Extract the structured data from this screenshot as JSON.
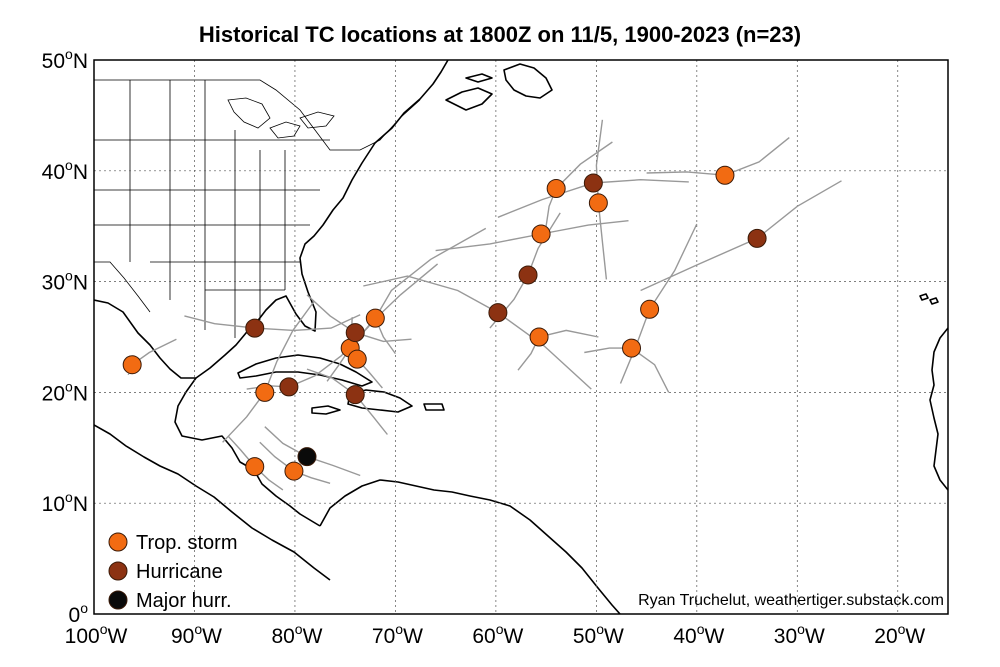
{
  "title": "Historical TC locations at 1800Z on 11/5, 1900-2023 (n=23)",
  "credit": "Ryan Truchelut, weathertiger.substack.com",
  "map": {
    "lon_range": [
      -100,
      -15
    ],
    "lat_range": [
      0,
      50
    ],
    "grid": true,
    "x_ticks": [
      {
        "lon": -100,
        "num": "100",
        "sup": "o",
        "hem": "W"
      },
      {
        "lon": -90,
        "num": "90",
        "sup": "o",
        "hem": "W"
      },
      {
        "lon": -80,
        "num": "80",
        "sup": "o",
        "hem": "W"
      },
      {
        "lon": -70,
        "num": "70",
        "sup": "o",
        "hem": "W"
      },
      {
        "lon": -60,
        "num": "60",
        "sup": "o",
        "hem": "W"
      },
      {
        "lon": -50,
        "num": "50",
        "sup": "o",
        "hem": "W"
      },
      {
        "lon": -40,
        "num": "40",
        "sup": "o",
        "hem": "W"
      },
      {
        "lon": -30,
        "num": "30",
        "sup": "o",
        "hem": "W"
      },
      {
        "lon": -20,
        "num": "20",
        "sup": "o",
        "hem": "W"
      }
    ],
    "y_ticks": [
      {
        "lat": 0,
        "num": "0",
        "sup": "o",
        "hem": ""
      },
      {
        "lat": 10,
        "num": "10",
        "sup": "o",
        "hem": "N"
      },
      {
        "lat": 20,
        "num": "20",
        "sup": "o",
        "hem": "N"
      },
      {
        "lat": 30,
        "num": "30",
        "sup": "o",
        "hem": "N"
      },
      {
        "lat": 40,
        "num": "40",
        "sup": "o",
        "hem": "N"
      },
      {
        "lat": 50,
        "num": "50",
        "sup": "o",
        "hem": "N"
      }
    ]
  },
  "legend": [
    {
      "label": "Trop. storm",
      "category": "ts"
    },
    {
      "label": "Hurricane",
      "category": "hu"
    },
    {
      "label": "Major hurr.",
      "category": "mh"
    }
  ],
  "colors": {
    "ts": "#f26b12",
    "hu": "#8c3212",
    "mh": "#0a0a0a",
    "track": "#999999",
    "coast": "#000000",
    "state": "#000000",
    "grid": "#555555"
  },
  "chart_data": {
    "type": "scatter",
    "title": "Historical TC locations at 1800Z on 11/5, 1900-2023 (n=23)",
    "x_unit": "degrees longitude (W negative)",
    "y_unit": "degrees latitude",
    "xlim": [
      -100,
      -15
    ],
    "ylim": [
      0,
      50
    ],
    "series": [
      {
        "name": "Trop. storm",
        "category": "ts",
        "points": [
          [
            -96.2,
            22.5
          ],
          [
            -83.0,
            20.0
          ],
          [
            -84.0,
            13.3
          ],
          [
            -80.1,
            12.9
          ],
          [
            -74.5,
            24.0
          ],
          [
            -73.8,
            23.0
          ],
          [
            -72.0,
            26.7
          ],
          [
            -55.7,
            25.0
          ],
          [
            -55.5,
            34.3
          ],
          [
            -54.0,
            38.4
          ],
          [
            -49.8,
            37.1
          ],
          [
            -44.7,
            27.5
          ],
          [
            -46.5,
            24.0
          ],
          [
            -37.2,
            39.6
          ]
        ]
      },
      {
        "name": "Hurricane",
        "category": "hu",
        "points": [
          [
            -84.0,
            25.8
          ],
          [
            -80.6,
            20.5
          ],
          [
            -74.0,
            25.4
          ],
          [
            -74.0,
            19.8
          ],
          [
            -59.8,
            27.2
          ],
          [
            -56.8,
            30.6
          ],
          [
            -50.3,
            38.9
          ],
          [
            -34.0,
            33.9
          ]
        ]
      },
      {
        "name": "Major hurr.",
        "category": "mh",
        "points": [
          [
            -78.8,
            14.2
          ]
        ]
      }
    ],
    "tracks": [
      [
        [
          -96.6,
          21.6
        ],
        [
          -96.2,
          22.5
        ],
        [
          -94.5,
          23.6
        ],
        [
          -91.8,
          24.8
        ]
      ],
      [
        [
          -87.2,
          15.5
        ],
        [
          -84.8,
          17.8
        ],
        [
          -83.0,
          20.0
        ],
        [
          -81.8,
          22.8
        ],
        [
          -80.2,
          25.6
        ],
        [
          -78.1,
          28.2
        ]
      ],
      [
        [
          -81.2,
          11.2
        ],
        [
          -82.6,
          12.1
        ],
        [
          -84.0,
          13.3
        ],
        [
          -85.4,
          14.8
        ],
        [
          -86.6,
          16.0
        ]
      ],
      [
        [
          -76.5,
          11.8
        ],
        [
          -78.4,
          12.3
        ],
        [
          -80.1,
          12.9
        ],
        [
          -82.0,
          14.2
        ],
        [
          -83.5,
          15.5
        ]
      ],
      [
        [
          -73.5,
          12.5
        ],
        [
          -76.2,
          13.4
        ],
        [
          -78.8,
          14.2
        ],
        [
          -81.2,
          15.4
        ],
        [
          -83.0,
          16.9
        ]
      ],
      [
        [
          -70.8,
          16.2
        ],
        [
          -72.2,
          17.8
        ],
        [
          -74.0,
          19.8
        ],
        [
          -76.3,
          21.3
        ],
        [
          -78.8,
          22.1
        ]
      ],
      [
        [
          -84.8,
          20.3
        ],
        [
          -82.5,
          20.6
        ],
        [
          -80.6,
          20.5
        ],
        [
          -78.0,
          21.5
        ],
        [
          -75.4,
          23.3
        ],
        [
          -72.6,
          26.0
        ]
      ],
      [
        [
          -91.0,
          26.9
        ],
        [
          -88.0,
          26.2
        ],
        [
          -84.0,
          25.8
        ],
        [
          -80.1,
          25.6
        ],
        [
          -76.4,
          25.8
        ],
        [
          -73.5,
          27.0
        ]
      ],
      [
        [
          -78.8,
          28.8
        ],
        [
          -76.5,
          26.9
        ],
        [
          -74.0,
          25.4
        ],
        [
          -71.2,
          24.6
        ],
        [
          -68.4,
          24.8
        ]
      ],
      [
        [
          -76.8,
          21.0
        ],
        [
          -75.6,
          22.5
        ],
        [
          -74.5,
          24.0
        ],
        [
          -72.5,
          26.2
        ],
        [
          -69.5,
          28.8
        ],
        [
          -65.8,
          31.6
        ]
      ],
      [
        [
          -71.3,
          20.4
        ],
        [
          -72.6,
          21.8
        ],
        [
          -73.8,
          23.0
        ],
        [
          -74.4,
          24.7
        ],
        [
          -74.3,
          26.8
        ]
      ],
      [
        [
          -70.0,
          23.5
        ],
        [
          -71.2,
          25.0
        ],
        [
          -72.0,
          26.7
        ],
        [
          -70.4,
          29.2
        ],
        [
          -66.5,
          32.0
        ],
        [
          -61.0,
          34.8
        ]
      ],
      [
        [
          -73.2,
          29.6
        ],
        [
          -68.8,
          30.5
        ],
        [
          -63.8,
          29.2
        ],
        [
          -59.8,
          27.2
        ],
        [
          -55.2,
          24.2
        ],
        [
          -50.5,
          20.3
        ]
      ],
      [
        [
          -57.8,
          22.0
        ],
        [
          -56.5,
          23.5
        ],
        [
          -55.7,
          25.0
        ],
        [
          -53.0,
          25.6
        ],
        [
          -49.8,
          25.0
        ]
      ],
      [
        [
          -60.6,
          25.8
        ],
        [
          -58.2,
          28.4
        ],
        [
          -56.8,
          30.6
        ],
        [
          -55.8,
          33.0
        ],
        [
          -53.6,
          36.2
        ]
      ],
      [
        [
          -66.0,
          32.8
        ],
        [
          -60.6,
          33.4
        ],
        [
          -55.5,
          34.3
        ],
        [
          -50.8,
          35.1
        ],
        [
          -46.8,
          35.5
        ]
      ],
      [
        [
          -55.0,
          35.0
        ],
        [
          -54.7,
          36.8
        ],
        [
          -54.0,
          38.4
        ],
        [
          -51.6,
          40.6
        ],
        [
          -48.4,
          42.6
        ]
      ],
      [
        [
          -49.0,
          30.2
        ],
        [
          -49.4,
          33.6
        ],
        [
          -49.8,
          37.1
        ],
        [
          -50.0,
          40.5
        ],
        [
          -49.4,
          44.6
        ]
      ],
      [
        [
          -59.8,
          35.8
        ],
        [
          -55.4,
          37.4
        ],
        [
          -50.3,
          38.9
        ],
        [
          -45.6,
          39.2
        ],
        [
          -40.8,
          39.0
        ]
      ],
      [
        [
          -47.6,
          20.8
        ],
        [
          -46.0,
          24.3
        ],
        [
          -44.7,
          27.5
        ],
        [
          -42.2,
          31.0
        ],
        [
          -40.0,
          35.2
        ]
      ],
      [
        [
          -51.2,
          23.6
        ],
        [
          -48.7,
          24.0
        ],
        [
          -46.5,
          24.0
        ],
        [
          -44.2,
          22.5
        ],
        [
          -42.8,
          20.0
        ]
      ],
      [
        [
          -45.0,
          39.8
        ],
        [
          -41.0,
          39.9
        ],
        [
          -37.2,
          39.6
        ],
        [
          -33.8,
          40.8
        ],
        [
          -30.8,
          43.0
        ]
      ],
      [
        [
          -45.6,
          29.2
        ],
        [
          -40.0,
          31.5
        ],
        [
          -34.0,
          33.9
        ],
        [
          -30.0,
          36.8
        ],
        [
          -25.6,
          39.1
        ]
      ]
    ]
  }
}
